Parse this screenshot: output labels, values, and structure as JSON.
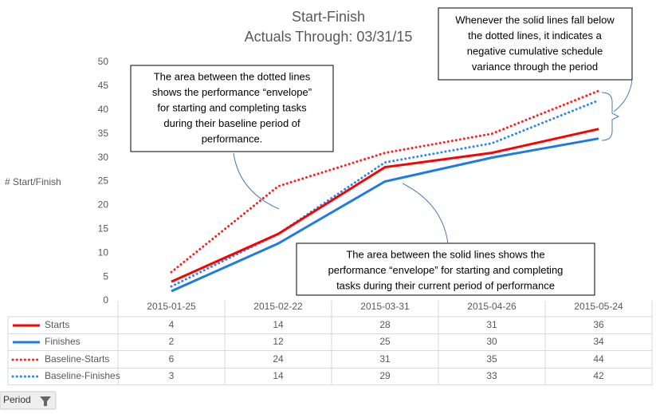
{
  "chart_data": {
    "type": "line",
    "title": "Start-Finish",
    "subtitle": "Actuals Through: 03/31/15",
    "y_label": "# Start/Finish",
    "categories": [
      "2015-01-25",
      "2015-02-22",
      "2015-03-31",
      "2015-04-26",
      "2015-05-24"
    ],
    "series": [
      {
        "name": "Starts",
        "color": "#ff0000",
        "style": "solid",
        "values": [
          4,
          14,
          28,
          31,
          36
        ]
      },
      {
        "name": "Finishes",
        "color": "#1e7be6",
        "style": "solid",
        "values": [
          2,
          12,
          25,
          30,
          34
        ]
      },
      {
        "name": "Baseline-Starts",
        "color": "#ff2020",
        "style": "dotted",
        "values": [
          6,
          24,
          31,
          35,
          44
        ]
      },
      {
        "name": "Baseline-Finishes",
        "color": "#2a88f0",
        "style": "dotted",
        "values": [
          3,
          14,
          29,
          33,
          42
        ]
      }
    ],
    "ylim": [
      0,
      50
    ],
    "yticks": [
      0,
      5,
      10,
      15,
      20,
      25,
      30,
      35,
      40,
      45,
      50
    ],
    "grid": false,
    "data_table": true,
    "annotations": [
      {
        "lines": [
          "The area between the dotted lines",
          "shows the performance “envelope”",
          "for starting and completing tasks",
          "during their baseline period of",
          "performance."
        ]
      },
      {
        "lines": [
          "Whenever the solid lines fall below",
          "the dotted lines, it indicates a",
          "negative cumulative schedule",
          "variance through the period"
        ]
      },
      {
        "lines": [
          "The area between the solid lines shows the",
          "performance “envelope” for starting and completing",
          "tasks during their current period of performance"
        ]
      }
    ]
  },
  "field_button": "Period"
}
